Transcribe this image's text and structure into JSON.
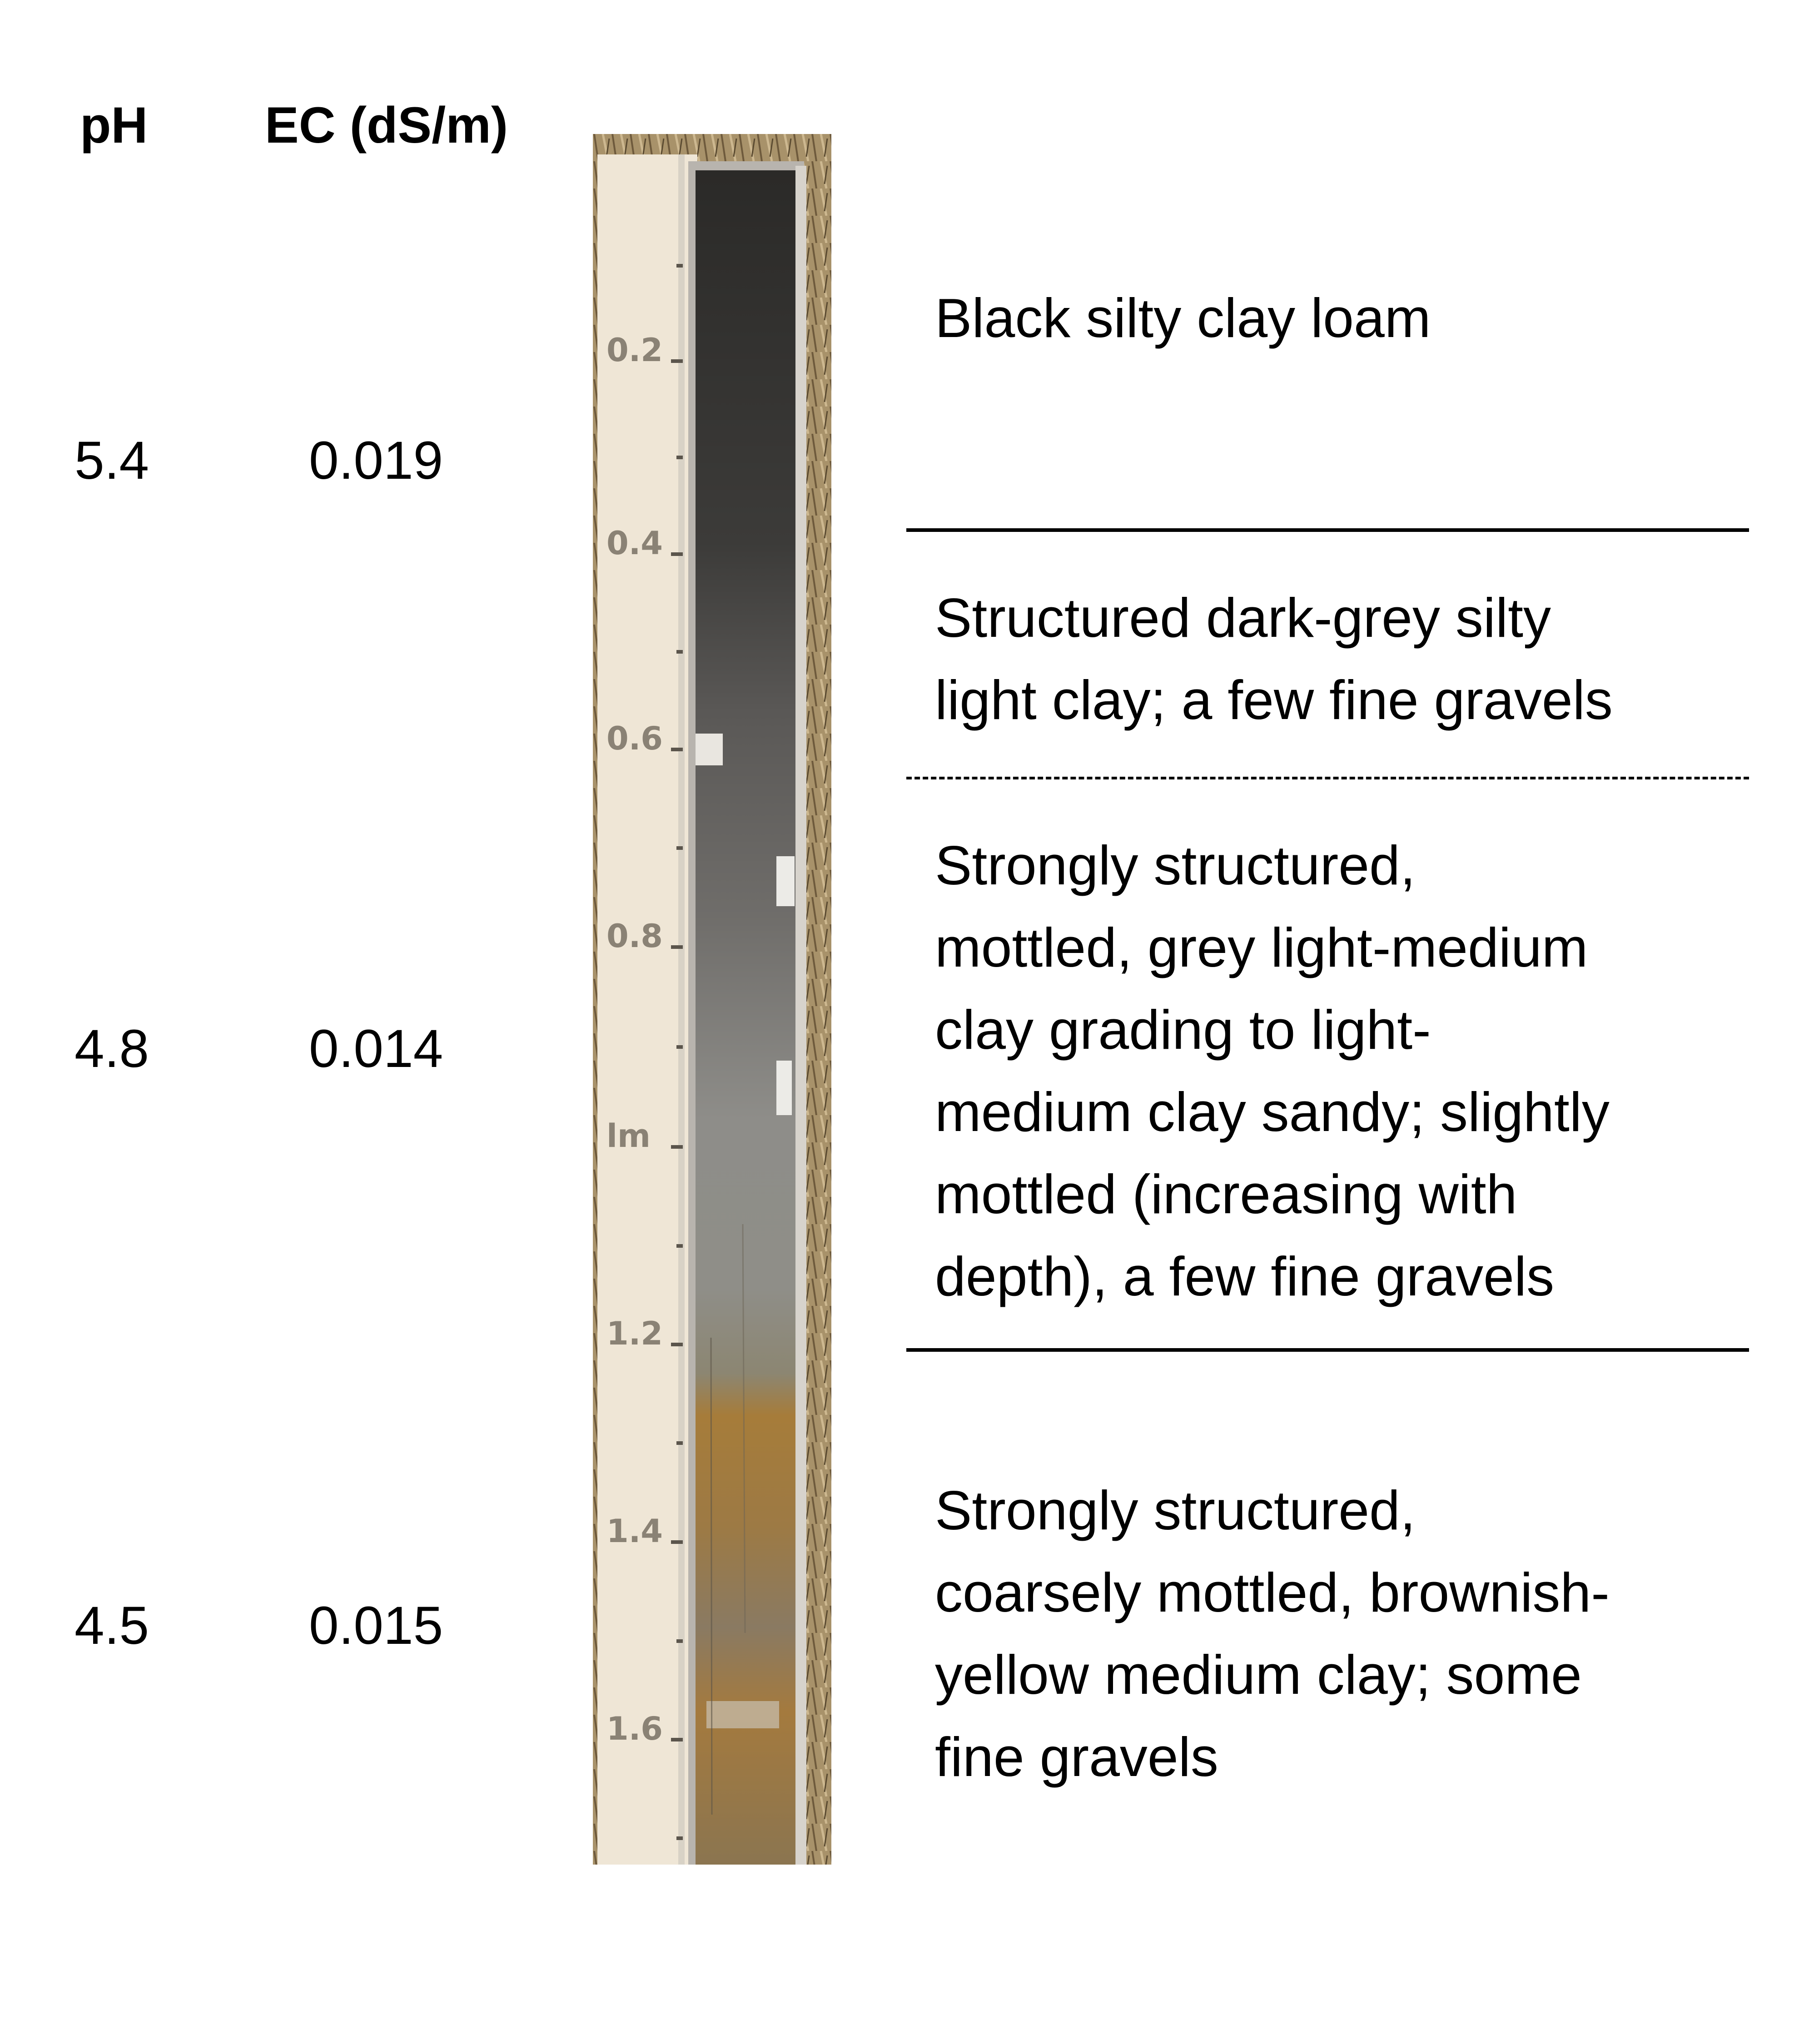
{
  "headers": {
    "ph": "pH",
    "ec": "EC (dS/m)"
  },
  "measurements": [
    {
      "ph": "5.4",
      "ec": "0.019"
    },
    {
      "ph": "4.8",
      "ec": "0.014"
    },
    {
      "ph": "4.5",
      "ec": "0.015"
    }
  ],
  "depth_ticks": [
    "0.2",
    "0.4",
    "0.6",
    "0.8",
    "lm",
    "1.2",
    "1.4",
    "1.6"
  ],
  "horizons": [
    {
      "lines": [
        "Black silty clay loam"
      ]
    },
    {
      "lines": [
        "Structured dark-grey silty",
        "light clay; a few fine gravels"
      ]
    },
    {
      "lines": [
        "Strongly structured,",
        "mottled, grey light-medium",
        "clay grading to light-",
        "medium clay sandy; slightly",
        "mottled (increasing with",
        "depth), a few fine gravels"
      ]
    },
    {
      "lines": [
        "Strongly structured,",
        "coarsely mottled, brownish-",
        "yellow medium clay; some",
        "fine gravels"
      ]
    }
  ],
  "boundaries": [
    "solid",
    "dashed",
    "solid"
  ],
  "colors": {
    "soil_black": "#2b2a28",
    "soil_dark_grey": "#5a5856",
    "soil_grey": "#8e8d89",
    "soil_brown_yellow": "#a67c3a",
    "tape": "#efe6d6",
    "stubble": "#a8926a"
  }
}
